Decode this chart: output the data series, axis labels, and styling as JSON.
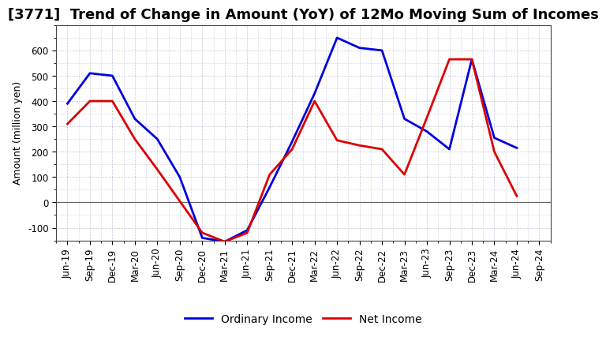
{
  "title": "[3771]  Trend of Change in Amount (YoY) of 12Mo Moving Sum of Incomes",
  "ylabel": "Amount (million yen)",
  "x_labels": [
    "Jun-19",
    "Sep-19",
    "Dec-19",
    "Mar-20",
    "Jun-20",
    "Sep-20",
    "Dec-20",
    "Mar-21",
    "Jun-21",
    "Sep-21",
    "Dec-21",
    "Mar-22",
    "Jun-22",
    "Sep-22",
    "Dec-22",
    "Mar-23",
    "Jun-23",
    "Sep-23",
    "Dec-23",
    "Mar-24",
    "Jun-24",
    "Sep-24"
  ],
  "ordinary_income": [
    390,
    510,
    500,
    330,
    250,
    100,
    -140,
    -155,
    -110,
    60,
    240,
    430,
    650,
    610,
    600,
    330,
    280,
    210,
    565,
    255,
    215,
    null
  ],
  "net_income": [
    310,
    400,
    400,
    250,
    130,
    5,
    -120,
    -155,
    -120,
    110,
    210,
    400,
    245,
    225,
    210,
    110,
    335,
    565,
    565,
    200,
    25,
    null
  ],
  "ordinary_color": "#0000dd",
  "net_color": "#dd0000",
  "ylim": [
    -150,
    700
  ],
  "yticks": [
    -100,
    0,
    100,
    200,
    300,
    400,
    500,
    600
  ],
  "bg_color": "#ffffff",
  "plot_bg_color": "#ffffff",
  "grid_color": "#aaaacc",
  "legend_labels": [
    "Ordinary Income",
    "Net Income"
  ],
  "line_width": 2.0,
  "title_fontsize": 13,
  "axis_label_fontsize": 9,
  "tick_fontsize": 8.5
}
